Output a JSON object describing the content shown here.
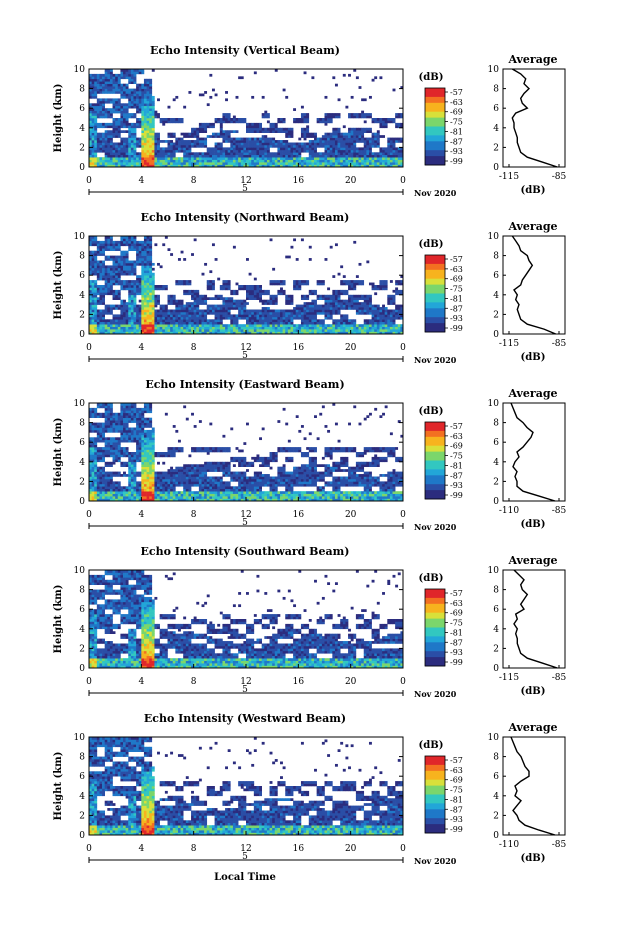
{
  "chart_data": [
    {
      "type": "heatmap",
      "title": "Echo Intensity (Vertical Beam)",
      "ylabel": "Height (km)",
      "ylim": [
        0,
        10
      ],
      "yticks": [
        "0",
        "2",
        "4",
        "6",
        "8",
        "10"
      ],
      "xlim": [
        0,
        24
      ],
      "xticks": [
        "0",
        "4",
        "8",
        "12",
        "16",
        "20",
        "0"
      ],
      "date_marker": "5",
      "date_label": "Nov 2020",
      "colorbar": {
        "label": "(dB)",
        "ticks": [
          "-57",
          "-63",
          "-69",
          "-75",
          "-81",
          "-87",
          "-93",
          "-99"
        ]
      },
      "average": {
        "title": "Average",
        "xlabel": "(dB)",
        "xticks": [
          "-115",
          "-85"
        ],
        "xlim": [
          -115,
          -85
        ],
        "height_km": [
          0,
          0.5,
          1,
          1.5,
          2,
          2.5,
          3,
          3.5,
          4,
          4.5,
          5,
          5.5,
          6,
          6.5,
          7,
          7.5,
          8,
          8.5,
          9,
          9.5,
          10
        ],
        "db": [
          -86,
          -95,
          -104,
          -108,
          -109,
          -110,
          -110,
          -111,
          -112,
          -112,
          -113,
          -111,
          -104,
          -107,
          -108,
          -106,
          -103,
          -106,
          -105,
          -108,
          -113
        ]
      }
    },
    {
      "type": "heatmap",
      "title": "Echo Intensity (Northward Beam)",
      "ylabel": "Height (km)",
      "ylim": [
        0,
        10
      ],
      "yticks": [
        "0",
        "2",
        "4",
        "6",
        "8",
        "10"
      ],
      "xlim": [
        0,
        24
      ],
      "xticks": [
        "0",
        "4",
        "8",
        "12",
        "16",
        "20",
        "0"
      ],
      "date_marker": "5",
      "date_label": "Nov 2020",
      "colorbar": {
        "label": "(dB)",
        "ticks": [
          "-57",
          "-63",
          "-69",
          "-75",
          "-81",
          "-87",
          "-93",
          "-99"
        ]
      },
      "average": {
        "title": "Average",
        "xlabel": "(dB)",
        "xticks": [
          "-115",
          "-85"
        ],
        "xlim": [
          -115,
          -85
        ],
        "height_km": [
          0,
          0.5,
          1,
          1.5,
          2,
          2.5,
          3,
          3.5,
          4,
          4.5,
          5,
          5.5,
          6,
          6.5,
          7,
          7.5,
          8,
          8.5,
          9,
          9.5,
          10
        ],
        "db": [
          -87,
          -94,
          -104,
          -108,
          -109,
          -110,
          -109,
          -111,
          -110,
          -112,
          -108,
          -107,
          -105,
          -103,
          -101,
          -103,
          -104,
          -108,
          -109,
          -111,
          -113
        ]
      }
    },
    {
      "type": "heatmap",
      "title": "Echo Intensity (Eastward Beam)",
      "ylabel": "Height (km)",
      "ylim": [
        0,
        10
      ],
      "yticks": [
        "0",
        "2",
        "4",
        "6",
        "8",
        "10"
      ],
      "xlim": [
        0,
        24
      ],
      "xticks": [
        "0",
        "4",
        "8",
        "12",
        "16",
        "20",
        "0"
      ],
      "date_marker": "5",
      "date_label": "Nov 2020",
      "colorbar": {
        "label": "(dB)",
        "ticks": [
          "-57",
          "-63",
          "-69",
          "-75",
          "-81",
          "-87",
          "-93",
          "-99"
        ]
      },
      "average": {
        "title": "Average",
        "xlabel": "(dB)",
        "xticks": [
          "-110",
          "-85"
        ],
        "xlim": [
          -110,
          -85
        ],
        "height_km": [
          0,
          0.5,
          1,
          1.5,
          2,
          2.5,
          3,
          3.5,
          4,
          4.5,
          5,
          5.5,
          6,
          6.5,
          7,
          7.5,
          8,
          8.5,
          9,
          9.5,
          10
        ],
        "db": [
          -87,
          -95,
          -103,
          -106,
          -106,
          -107,
          -106,
          -108,
          -107,
          -105,
          -106,
          -103,
          -101,
          -99,
          -98,
          -101,
          -103,
          -106,
          -107,
          -108,
          -109
        ]
      }
    },
    {
      "type": "heatmap",
      "title": "Echo Intensity (Southward Beam)",
      "ylabel": "Height (km)",
      "ylim": [
        0,
        10
      ],
      "yticks": [
        "0",
        "2",
        "4",
        "6",
        "8",
        "10"
      ],
      "xlim": [
        0,
        24
      ],
      "xticks": [
        "0",
        "4",
        "8",
        "12",
        "16",
        "20",
        "0"
      ],
      "date_marker": "5",
      "date_label": "Nov 2020",
      "colorbar": {
        "label": "(dB)",
        "ticks": [
          "-57",
          "-63",
          "-69",
          "-75",
          "-81",
          "-87",
          "-93",
          "-99"
        ]
      },
      "average": {
        "title": "Average",
        "xlabel": "(dB)",
        "xticks": [
          "-115",
          "-85"
        ],
        "xlim": [
          -115,
          -85
        ],
        "height_km": [
          0,
          0.5,
          1,
          1.5,
          2,
          2.5,
          3,
          3.5,
          4,
          4.5,
          5,
          5.5,
          6,
          6.5,
          7,
          7.5,
          8,
          8.5,
          9,
          9.5,
          10
        ],
        "db": [
          -86,
          -95,
          -104,
          -108,
          -109,
          -110,
          -110,
          -111,
          -110,
          -112,
          -110,
          -111,
          -106,
          -108,
          -106,
          -104,
          -107,
          -108,
          -106,
          -109,
          -112
        ]
      }
    },
    {
      "type": "heatmap",
      "title": "Echo Intensity (Westward Beam)",
      "ylabel": "Height (km)",
      "ylim": [
        0,
        10
      ],
      "yticks": [
        "0",
        "2",
        "4",
        "6",
        "8",
        "10"
      ],
      "xlim": [
        0,
        24
      ],
      "xticks": [
        "0",
        "4",
        "8",
        "12",
        "16",
        "20",
        "0"
      ],
      "date_marker": "5",
      "date_label": "Nov 2020",
      "colorbar": {
        "label": "(dB)",
        "ticks": [
          "-57",
          "-63",
          "-69",
          "-75",
          "-81",
          "-87",
          "-93",
          "-99"
        ]
      },
      "average": {
        "title": "Average",
        "xlabel": "(dB)",
        "xticks": [
          "-110",
          "-85"
        ],
        "xlim": [
          -110,
          -85
        ],
        "height_km": [
          0,
          0.5,
          1,
          1.5,
          2,
          2.5,
          3,
          3.5,
          4,
          4.5,
          5,
          5.5,
          6,
          6.5,
          7,
          7.5,
          8,
          8.5,
          9,
          9.5,
          10
        ],
        "db": [
          -87,
          -95,
          -102,
          -105,
          -106,
          -108,
          -106,
          -104,
          -107,
          -106,
          -107,
          -104,
          -100,
          -100,
          -102,
          -103,
          -104,
          -106,
          -107,
          -108,
          -109
        ]
      }
    }
  ],
  "xlabel": "Local Time",
  "colors": {
    "colormap": [
      "#2b2c7e",
      "#2a4ea6",
      "#1f78c8",
      "#22a6d8",
      "#32c7c0",
      "#7bd66b",
      "#d8e03a",
      "#f7b31e",
      "#f37021",
      "#e0262a"
    ],
    "background": "#ffffff"
  }
}
